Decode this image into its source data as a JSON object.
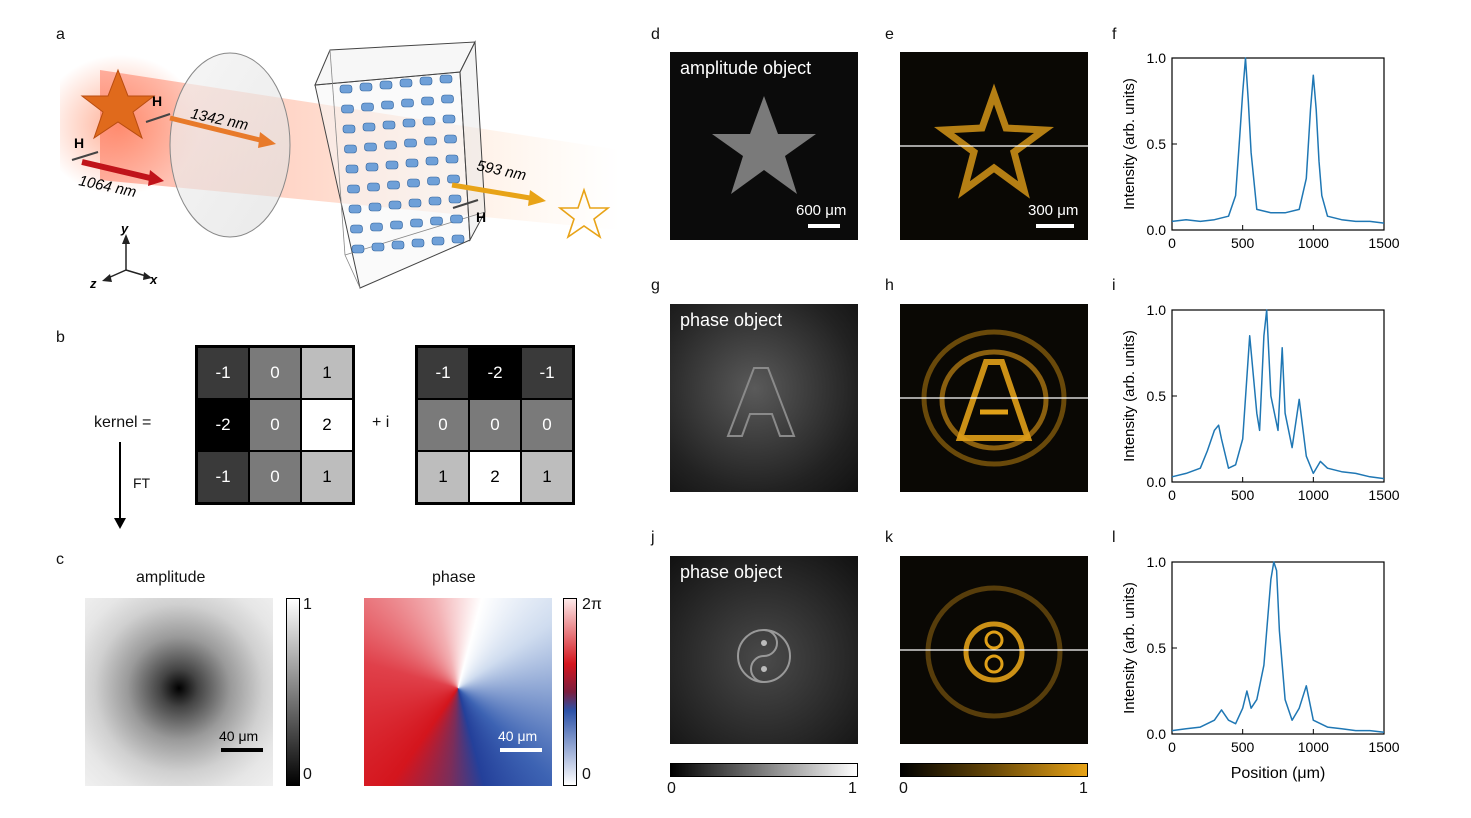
{
  "panel_letters": [
    "a",
    "b",
    "c",
    "d",
    "e",
    "f",
    "g",
    "h",
    "i",
    "j",
    "k",
    "l"
  ],
  "schematic": {
    "wavelength_in": "1064 nm",
    "wavelength_mid": "1342 nm",
    "wavelength_out": "593 nm",
    "pol_label": "H",
    "axes": {
      "y": "y",
      "z": "z",
      "x": "x"
    }
  },
  "kernel": {
    "label": "kernel =",
    "plus_i": "+ i",
    "ft": "FT",
    "real": [
      [
        "-1",
        "0",
        "1"
      ],
      [
        "-2",
        "0",
        "2"
      ],
      [
        "-1",
        "0",
        "1"
      ]
    ],
    "imag": [
      [
        "-1",
        "-2",
        "-1"
      ],
      [
        "0",
        "0",
        "0"
      ],
      [
        "1",
        "2",
        "1"
      ]
    ]
  },
  "transfer": {
    "amplitude_title": "amplitude",
    "phase_title": "phase",
    "amp_max": "1",
    "amp_min": "0",
    "phase_max": "2π",
    "phase_min": "0",
    "scalebar": "40 μm"
  },
  "objects": {
    "d_caption": "amplitude object",
    "g_caption": "phase object",
    "j_caption": "phase object",
    "d_scalebar": "600 μm",
    "e_scalebar": "300 μm",
    "gray_bar_min": "0",
    "gray_bar_max": "1",
    "gold_bar_min": "0",
    "gold_bar_max": "1"
  },
  "plot_text": {
    "ylabel": "Intensity (arb. units)",
    "xlabel": "Position (μm)",
    "xticks": [
      "0",
      "500",
      "1000",
      "1500"
    ],
    "yticks": [
      "0.0",
      "0.5",
      "1.0"
    ]
  },
  "colors": {
    "plot_line": "#1f77b4",
    "gold": "#e8a317"
  },
  "chart_data": [
    {
      "type": "line",
      "xlim": [
        0,
        1500
      ],
      "ylim": [
        0,
        1
      ],
      "series": [
        {
          "x": [
            0,
            100,
            200,
            300,
            400,
            450,
            480,
            500,
            520,
            540,
            560,
            600,
            700,
            800,
            900,
            950,
            980,
            1000,
            1020,
            1040,
            1060,
            1100,
            1200,
            1300,
            1400,
            1500
          ],
          "y": [
            0.05,
            0.06,
            0.05,
            0.06,
            0.08,
            0.2,
            0.55,
            0.8,
            1.0,
            0.75,
            0.45,
            0.12,
            0.1,
            0.1,
            0.12,
            0.3,
            0.7,
            0.9,
            0.7,
            0.4,
            0.2,
            0.08,
            0.06,
            0.05,
            0.05,
            0.04
          ]
        }
      ]
    },
    {
      "type": "line",
      "xlim": [
        0,
        1500
      ],
      "ylim": [
        0,
        1
      ],
      "series": [
        {
          "x": [
            0,
            100,
            200,
            250,
            300,
            330,
            350,
            400,
            450,
            500,
            550,
            600,
            620,
            650,
            670,
            700,
            750,
            780,
            800,
            850,
            900,
            950,
            1000,
            1050,
            1100,
            1200,
            1300,
            1400,
            1500
          ],
          "y": [
            0.03,
            0.05,
            0.08,
            0.18,
            0.3,
            0.33,
            0.25,
            0.08,
            0.1,
            0.25,
            0.85,
            0.4,
            0.3,
            0.85,
            1.0,
            0.5,
            0.3,
            0.78,
            0.4,
            0.2,
            0.48,
            0.15,
            0.05,
            0.12,
            0.08,
            0.06,
            0.05,
            0.03,
            0.02
          ]
        }
      ]
    },
    {
      "type": "line",
      "xlim": [
        0,
        1500
      ],
      "ylim": [
        0,
        1
      ],
      "series": [
        {
          "x": [
            0,
            100,
            200,
            300,
            350,
            400,
            450,
            500,
            530,
            560,
            600,
            650,
            700,
            720,
            740,
            760,
            800,
            850,
            900,
            950,
            1000,
            1100,
            1200,
            1300,
            1400,
            1500
          ],
          "y": [
            0.02,
            0.03,
            0.04,
            0.08,
            0.14,
            0.08,
            0.06,
            0.15,
            0.25,
            0.15,
            0.2,
            0.4,
            0.9,
            1.0,
            0.95,
            0.6,
            0.2,
            0.08,
            0.15,
            0.28,
            0.08,
            0.04,
            0.03,
            0.02,
            0.02,
            0.01
          ]
        }
      ]
    }
  ]
}
